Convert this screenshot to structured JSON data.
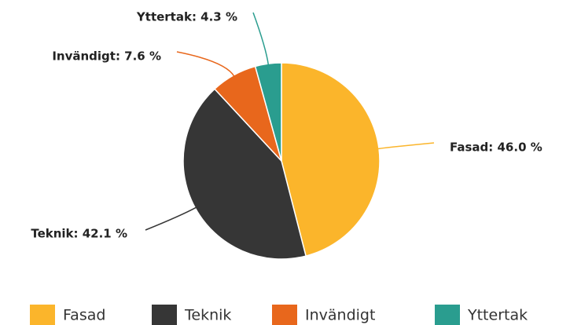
{
  "chart_data": {
    "type": "pie",
    "categories": [
      "Fasad",
      "Teknik",
      "Invändigt",
      "Yttertak"
    ],
    "values": [
      46.0,
      42.1,
      7.6,
      4.3
    ],
    "value_labels": [
      "Fasad: 46.0 %",
      "Teknik: 42.1 %",
      "Invändigt: 7.6 %",
      "Yttertak: 4.3 %"
    ],
    "colors": [
      "#fbb52b",
      "#363636",
      "#e8671c",
      "#2a9d8f"
    ],
    "legend": "bottom"
  }
}
